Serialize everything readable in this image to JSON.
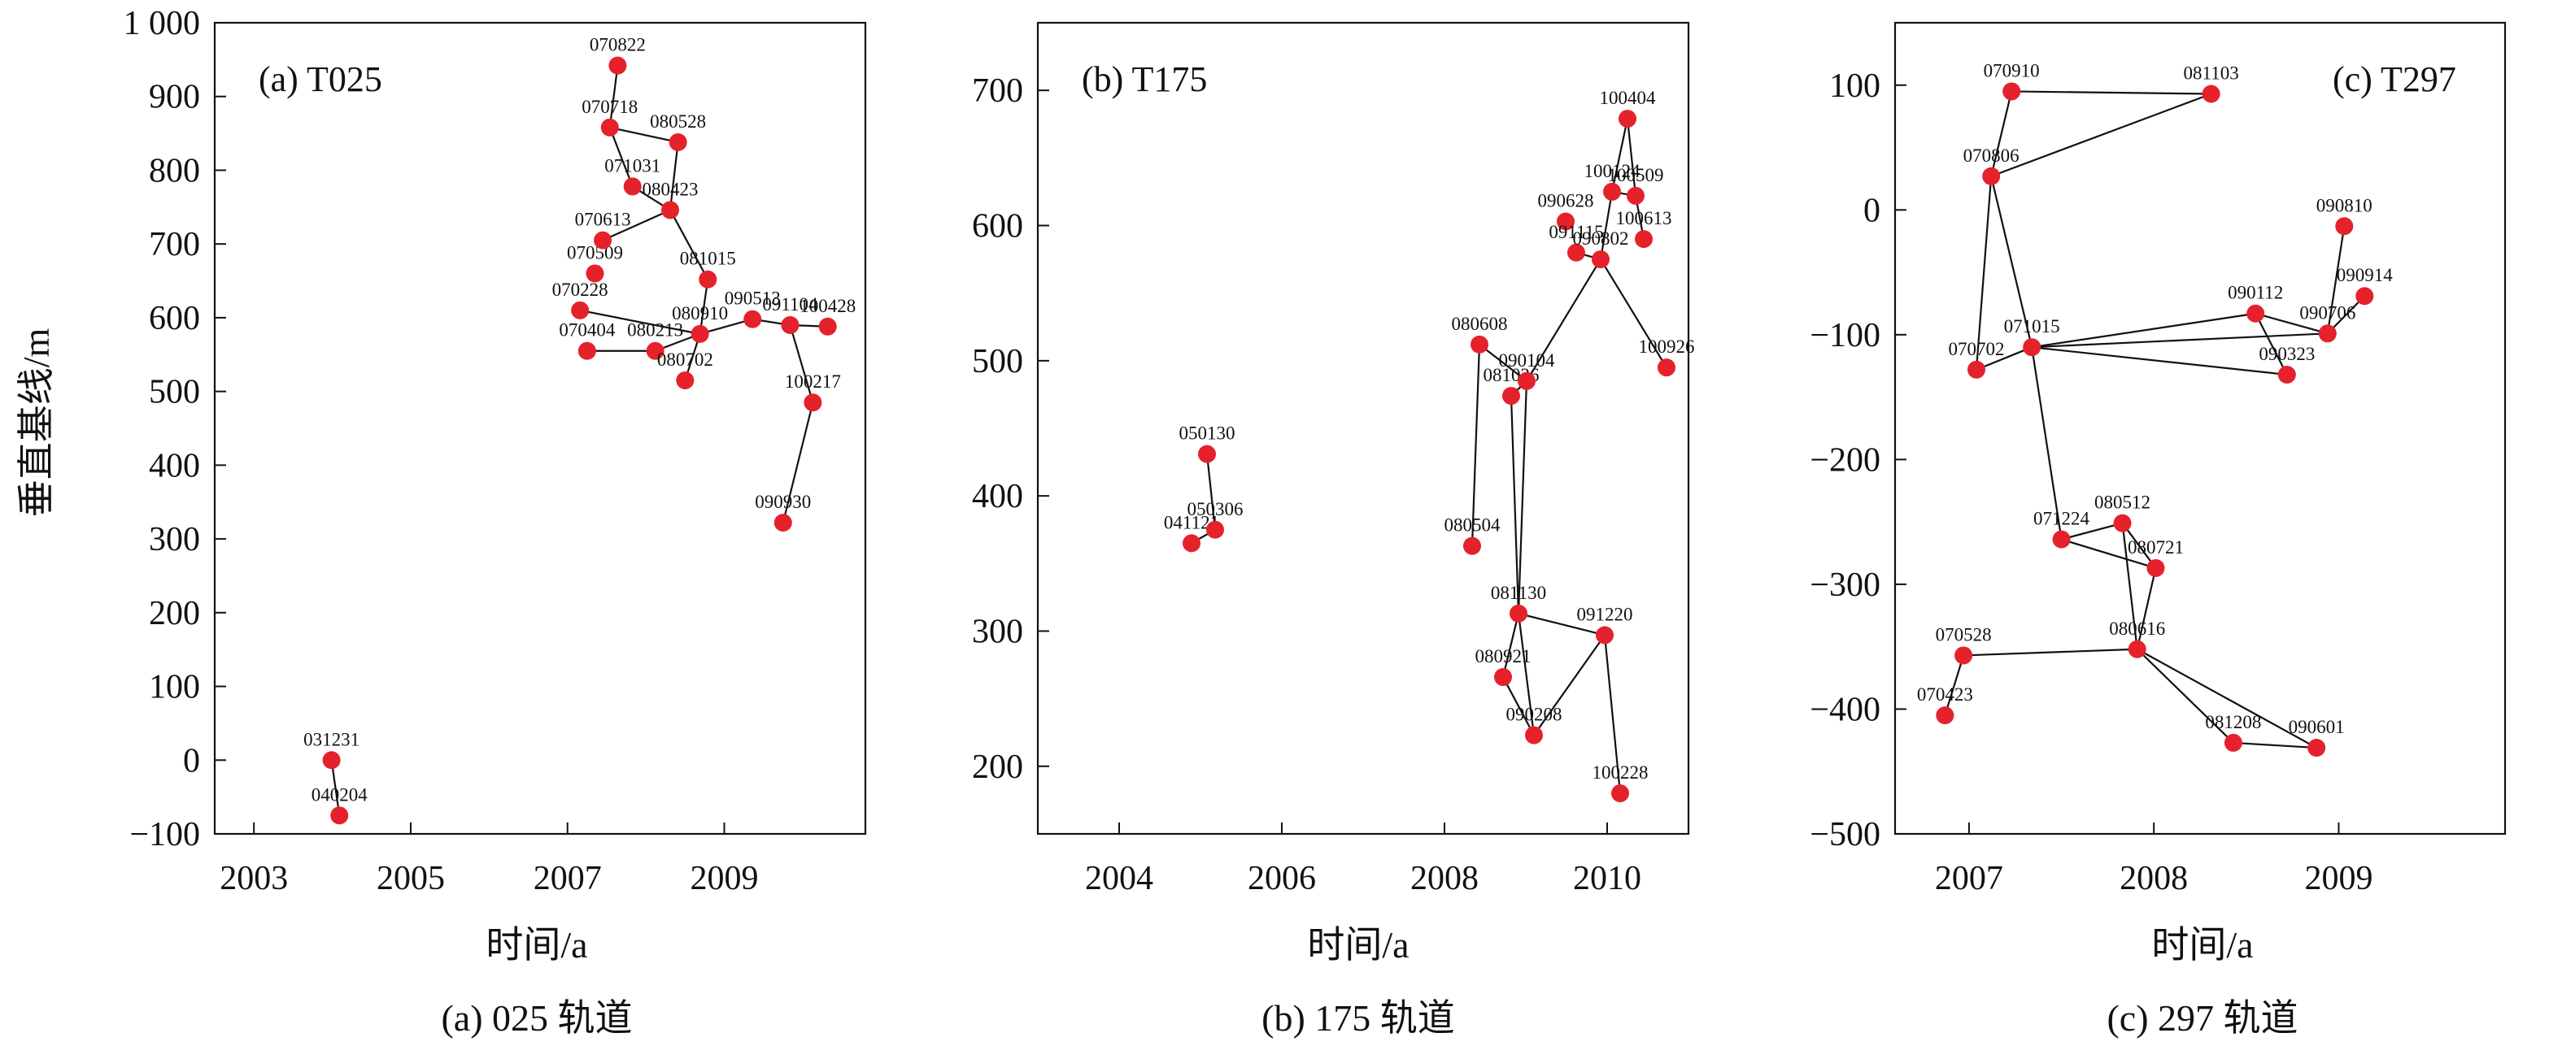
{
  "point_color": "#e5222b",
  "chart_data": [
    {
      "type": "scatter",
      "title": "(a) T025",
      "caption": "(a) 025 轨道",
      "xlabel": "时间/a",
      "ylabel": "垂直基线/m",
      "xlim": [
        2002.5,
        2010.8
      ],
      "ylim": [
        -100,
        1000
      ],
      "xticks": [
        2003,
        2005,
        2007,
        2009
      ],
      "xtick_labels": [
        "2003",
        "2005",
        "2007",
        "2009"
      ],
      "yticks": [
        -100,
        0,
        100,
        200,
        300,
        400,
        500,
        600,
        700,
        800,
        900,
        1000
      ],
      "ytick_labels": [
        "−100",
        "0",
        "100",
        "200",
        "300",
        "400",
        "500",
        "600",
        "700",
        "800",
        "900",
        "1 000"
      ],
      "points": [
        {
          "label": "031231",
          "x": 2003.99,
          "y": 0
        },
        {
          "label": "040204",
          "x": 2004.09,
          "y": -75
        },
        {
          "label": "070228",
          "x": 2007.16,
          "y": 610
        },
        {
          "label": "070404",
          "x": 2007.25,
          "y": 555
        },
        {
          "label": "070509",
          "x": 2007.35,
          "y": 660
        },
        {
          "label": "070613",
          "x": 2007.45,
          "y": 705
        },
        {
          "label": "070718",
          "x": 2007.54,
          "y": 858
        },
        {
          "label": "070822",
          "x": 2007.64,
          "y": 942
        },
        {
          "label": "071031",
          "x": 2007.83,
          "y": 778
        },
        {
          "label": "080213",
          "x": 2008.12,
          "y": 555
        },
        {
          "label": "080423",
          "x": 2008.31,
          "y": 746
        },
        {
          "label": "080528",
          "x": 2008.41,
          "y": 838
        },
        {
          "label": "080702",
          "x": 2008.5,
          "y": 515
        },
        {
          "label": "080910",
          "x": 2008.69,
          "y": 578
        },
        {
          "label": "081015",
          "x": 2008.79,
          "y": 652
        },
        {
          "label": "090513",
          "x": 2009.36,
          "y": 598
        },
        {
          "label": "090930",
          "x": 2009.75,
          "y": 322
        },
        {
          "label": "091104",
          "x": 2009.84,
          "y": 590
        },
        {
          "label": "100217",
          "x": 2010.13,
          "y": 485
        },
        {
          "label": "100428",
          "x": 2010.32,
          "y": 588
        }
      ],
      "edges": [
        [
          "031231",
          "040204"
        ],
        [
          "070822",
          "070718"
        ],
        [
          "070718",
          "071031"
        ],
        [
          "070718",
          "080528"
        ],
        [
          "080528",
          "080423"
        ],
        [
          "071031",
          "080423"
        ],
        [
          "080423",
          "070613"
        ],
        [
          "080423",
          "081015"
        ],
        [
          "081015",
          "080910"
        ],
        [
          "080910",
          "080702"
        ],
        [
          "080910",
          "080213"
        ],
        [
          "070404",
          "080213"
        ],
        [
          "070228",
          "080910"
        ],
        [
          "080910",
          "090513"
        ],
        [
          "090513",
          "091104"
        ],
        [
          "091104",
          "100428"
        ],
        [
          "091104",
          "100217"
        ],
        [
          "100217",
          "090930"
        ]
      ]
    },
    {
      "type": "scatter",
      "title": "(b) T175",
      "caption": "(b) 175 轨道",
      "xlabel": "时间/a",
      "ylabel": "",
      "xlim": [
        2003.0,
        2011.0
      ],
      "ylim": [
        150,
        750
      ],
      "xticks": [
        2004,
        2006,
        2008,
        2010
      ],
      "xtick_labels": [
        "2004",
        "2006",
        "2008",
        "2010"
      ],
      "yticks": [
        200,
        300,
        400,
        500,
        600,
        700
      ],
      "ytick_labels": [
        "200",
        "300",
        "400",
        "500",
        "600",
        "700"
      ],
      "points": [
        {
          "label": "041121",
          "x": 2004.89,
          "y": 365
        },
        {
          "label": "050130",
          "x": 2005.08,
          "y": 431
        },
        {
          "label": "050306",
          "x": 2005.18,
          "y": 375
        },
        {
          "label": "080504",
          "x": 2008.34,
          "y": 363
        },
        {
          "label": "080608",
          "x": 2008.43,
          "y": 512
        },
        {
          "label": "080921",
          "x": 2008.72,
          "y": 266
        },
        {
          "label": "081026",
          "x": 2008.82,
          "y": 474
        },
        {
          "label": "081130",
          "x": 2008.91,
          "y": 313
        },
        {
          "label": "090104",
          "x": 2009.01,
          "y": 485
        },
        {
          "label": "090208",
          "x": 2009.1,
          "y": 223
        },
        {
          "label": "090628",
          "x": 2009.49,
          "y": 603
        },
        {
          "label": "091115",
          "x": 2009.62,
          "y": 580
        },
        {
          "label": "091220",
          "x": 2009.97,
          "y": 297
        },
        {
          "label": "090802",
          "x": 2009.92,
          "y": 575
        },
        {
          "label": "100124",
          "x": 2010.06,
          "y": 625
        },
        {
          "label": "100228",
          "x": 2010.16,
          "y": 180
        },
        {
          "label": "100404",
          "x": 2010.25,
          "y": 679
        },
        {
          "label": "100509",
          "x": 2010.35,
          "y": 622
        },
        {
          "label": "100613",
          "x": 2010.45,
          "y": 590
        },
        {
          "label": "100926",
          "x": 2010.73,
          "y": 495
        }
      ],
      "edges": [
        [
          "041121",
          "050306"
        ],
        [
          "050306",
          "050130"
        ],
        [
          "080608",
          "080504"
        ],
        [
          "080608",
          "090104"
        ],
        [
          "081026",
          "081130"
        ],
        [
          "081026",
          "090104"
        ],
        [
          "090104",
          "081130"
        ],
        [
          "090104",
          "090802"
        ],
        [
          "081130",
          "080921"
        ],
        [
          "081130",
          "090208"
        ],
        [
          "081130",
          "091220"
        ],
        [
          "080921",
          "090208"
        ],
        [
          "090208",
          "091220"
        ],
        [
          "091220",
          "100228"
        ],
        [
          "091115",
          "090802"
        ],
        [
          "090802",
          "100124"
        ],
        [
          "100124",
          "100404"
        ],
        [
          "100404",
          "100509"
        ],
        [
          "100124",
          "100509"
        ],
        [
          "100509",
          "100613"
        ],
        [
          "090802",
          "100926"
        ]
      ]
    },
    {
      "type": "scatter",
      "title": "(c) T297",
      "caption": "(c) 297 轨道",
      "xlabel": "时间/a",
      "ylabel": "",
      "xlim": [
        2006.6,
        2009.9
      ],
      "ylim": [
        -500,
        150
      ],
      "xticks": [
        2007,
        2008,
        2009
      ],
      "xtick_labels": [
        "2007",
        "2008",
        "2009"
      ],
      "yticks": [
        -500,
        -400,
        -300,
        -200,
        -100,
        0,
        100
      ],
      "ytick_labels": [
        "−500",
        "−400",
        "−300",
        "−200",
        "−100",
        "0",
        "100"
      ],
      "points": [
        {
          "label": "070423",
          "x": 2006.87,
          "y": -405
        },
        {
          "label": "070528",
          "x": 2006.97,
          "y": -357
        },
        {
          "label": "070702",
          "x": 2007.04,
          "y": -128
        },
        {
          "label": "070806",
          "x": 2007.12,
          "y": 27
        },
        {
          "label": "070910",
          "x": 2007.23,
          "y": 95
        },
        {
          "label": "071015",
          "x": 2007.34,
          "y": -110
        },
        {
          "label": "071224",
          "x": 2007.5,
          "y": -264
        },
        {
          "label": "080512",
          "x": 2007.83,
          "y": -251
        },
        {
          "label": "080616",
          "x": 2007.91,
          "y": -352
        },
        {
          "label": "080721",
          "x": 2008.01,
          "y": -287
        },
        {
          "label": "081103",
          "x": 2008.31,
          "y": 93
        },
        {
          "label": "081208",
          "x": 2008.43,
          "y": -427
        },
        {
          "label": "090112",
          "x": 2008.55,
          "y": -83
        },
        {
          "label": "090323",
          "x": 2008.72,
          "y": -132
        },
        {
          "label": "090601",
          "x": 2008.88,
          "y": -431
        },
        {
          "label": "090706",
          "x": 2008.94,
          "y": -99
        },
        {
          "label": "090810",
          "x": 2009.03,
          "y": -13
        },
        {
          "label": "090914",
          "x": 2009.14,
          "y": -69
        }
      ],
      "edges": [
        [
          "070910",
          "081103"
        ],
        [
          "070910",
          "070806"
        ],
        [
          "070806",
          "081103"
        ],
        [
          "070806",
          "070702"
        ],
        [
          "070806",
          "071015"
        ],
        [
          "070702",
          "071015"
        ],
        [
          "071015",
          "090112"
        ],
        [
          "071015",
          "090706"
        ],
        [
          "071015",
          "090323"
        ],
        [
          "090112",
          "090706"
        ],
        [
          "090112",
          "090323"
        ],
        [
          "090706",
          "090914"
        ],
        [
          "090706",
          "090810"
        ],
        [
          "071015",
          "071224"
        ],
        [
          "071224",
          "080512"
        ],
        [
          "080512",
          "080721"
        ],
        [
          "071224",
          "080721"
        ],
        [
          "080512",
          "080616"
        ],
        [
          "080721",
          "080616"
        ],
        [
          "080616",
          "070528"
        ],
        [
          "070528",
          "070423"
        ],
        [
          "080616",
          "081208"
        ],
        [
          "080616",
          "090601"
        ],
        [
          "081208",
          "090601"
        ]
      ]
    }
  ]
}
